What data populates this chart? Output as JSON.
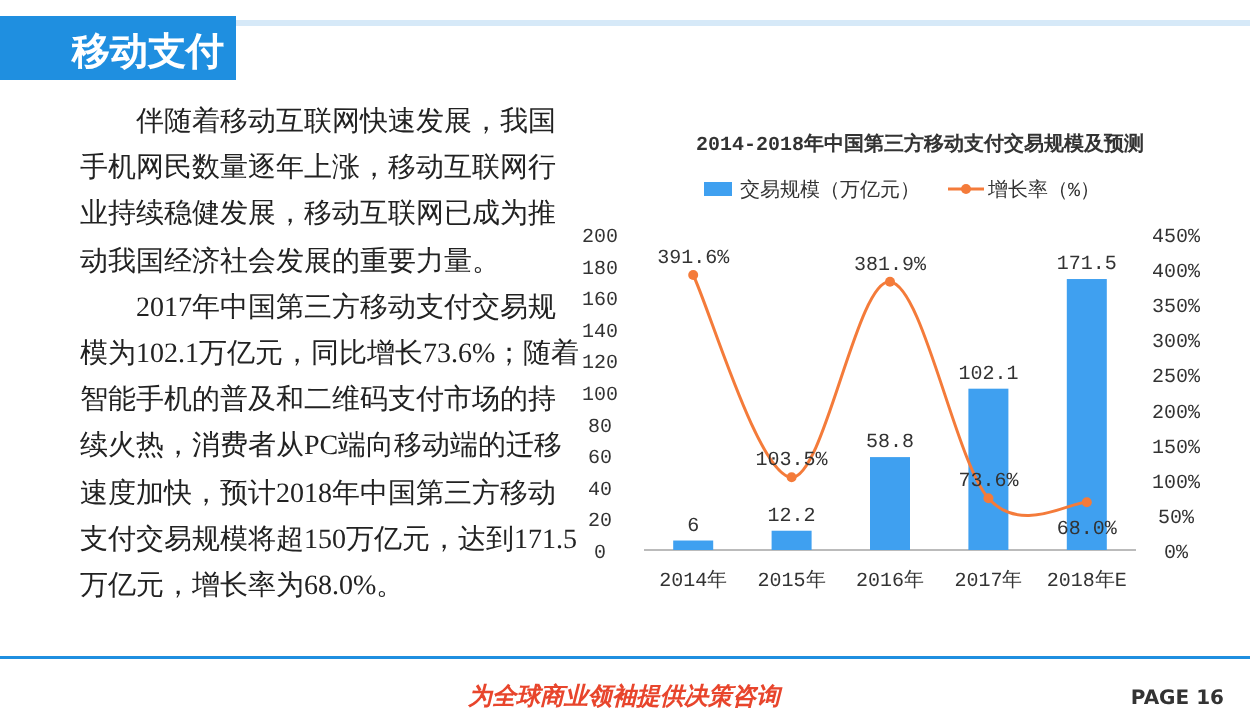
{
  "chart_data": [
    {
      "type": "other",
      "title": "移动支付",
      "annotations": [
        "伴随着移动互联网快速发展，我国手机网民数量逐年上涨，移动互联网行业持续稳健发展，移动互联网已成为推动我国经济社会发展的重要力量。",
        "2017年中国第三方移动支付交易规模为102.1万亿元，同比增长73.6%；随着智能手机的普及和二维码支付市场的持续火热，消费者从PC端向移动端的迁移速度加快，预计2018年中国第三方移动支付交易规模将超150万亿元，达到171.5万亿元，增长率为68.0%。",
        "为全球商业领袖提供决策咨询",
        "PAGE 16"
      ]
    },
    {
      "type": "bar",
      "title": "2014-2018年中国第三方移动支付交易规模及预测",
      "categories": [
        "2014年",
        "2015年",
        "2016年",
        "2017年",
        "2018年E"
      ],
      "series": [
        {
          "name": "交易规模（万亿元）",
          "type": "bar",
          "color": "#3fa0f0",
          "values": [
            6,
            12.2,
            58.8,
            102.1,
            171.5
          ],
          "value_labels": [
            "6",
            "12.2",
            "58.8",
            "102.1",
            "171.5"
          ]
        },
        {
          "name": "增长率（%）",
          "type": "line",
          "axis": "y2",
          "color": "#f47b3a",
          "values": [
            391.6,
            103.5,
            381.9,
            73.6,
            68.0
          ],
          "value_labels": [
            "391.6%",
            "103.5%",
            "381.9%",
            "73.6%",
            "68.0%"
          ]
        }
      ],
      "ylim": [
        0,
        200
      ],
      "yticks": [
        0,
        20,
        40,
        60,
        80,
        100,
        120,
        140,
        160,
        180,
        200
      ],
      "y2lim": [
        0,
        450
      ],
      "y2ticks": [
        {
          "value": 0,
          "label": "0%"
        },
        {
          "value": 50,
          "label": "50%"
        },
        {
          "value": 100,
          "label": "100%"
        },
        {
          "value": 150,
          "label": "150%"
        },
        {
          "value": 200,
          "label": "200%"
        },
        {
          "value": 250,
          "label": "250%"
        },
        {
          "value": 300,
          "label": "300%"
        },
        {
          "value": 350,
          "label": "350%"
        },
        {
          "value": 400,
          "label": "400%"
        },
        {
          "value": 450,
          "label": "450%"
        }
      ],
      "legend": "top",
      "marker": "circle",
      "grid": false
    }
  ]
}
